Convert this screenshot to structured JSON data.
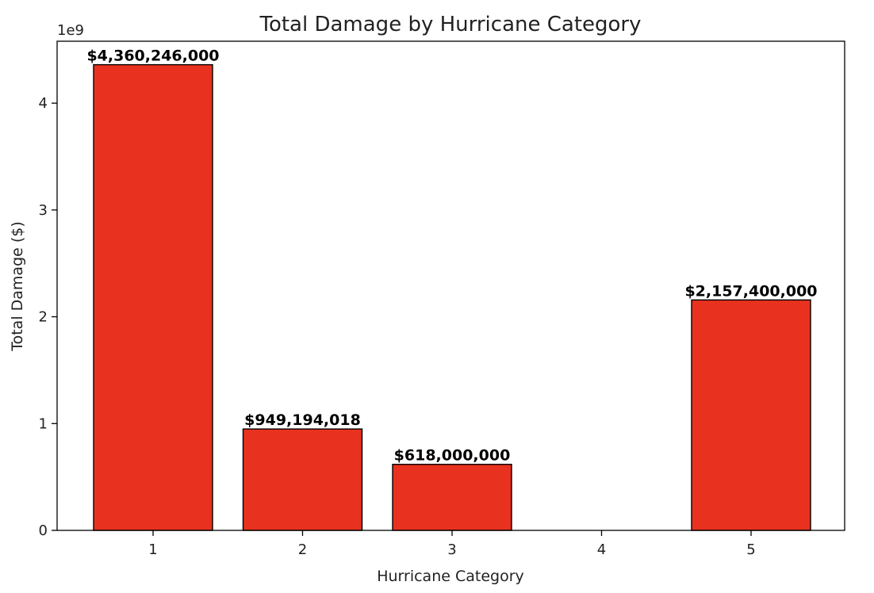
{
  "chart_data": {
    "type": "bar",
    "title": "Total Damage by Hurricane Category",
    "xlabel": "Hurricane Category",
    "ylabel": "Total Damage ($)",
    "categories": [
      "1",
      "2",
      "3",
      "4",
      "5"
    ],
    "values": [
      4360246000,
      949194018,
      618000000,
      0,
      2157400000
    ],
    "data_labels": [
      "$4,360,246,000",
      "$949,194,018",
      "$618,000,000",
      "",
      "$2,157,400,000"
    ],
    "ylim": [
      0,
      4580000000
    ],
    "y_ticks": [
      0,
      1,
      2,
      3,
      4
    ],
    "y_tick_labels": [
      "0",
      "1",
      "2",
      "3",
      "4"
    ],
    "y_scale_label": "1e9",
    "bar_color": "#e8321f",
    "grid": false
  }
}
